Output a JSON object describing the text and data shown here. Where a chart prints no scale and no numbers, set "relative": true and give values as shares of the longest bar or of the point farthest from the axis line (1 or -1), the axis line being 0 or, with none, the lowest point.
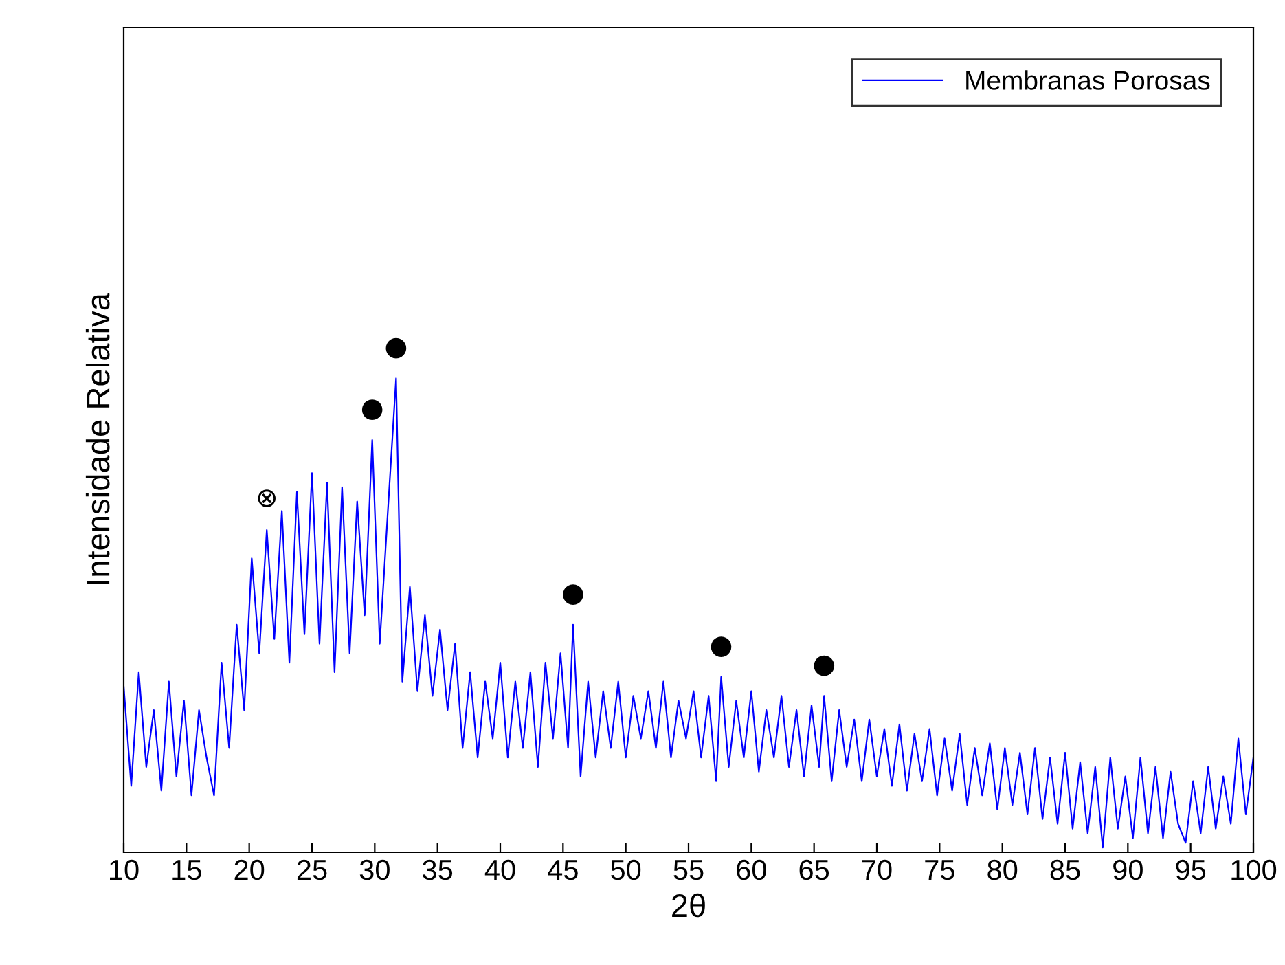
{
  "chart_data": {
    "type": "line",
    "xlabel": "2θ",
    "ylabel": "Intensidade Relativa",
    "relative": true,
    "xlim": [
      10,
      100
    ],
    "xticks": [
      10,
      15,
      20,
      25,
      30,
      35,
      40,
      45,
      50,
      55,
      60,
      65,
      70,
      75,
      80,
      85,
      90,
      95,
      100
    ],
    "tick_labels": "x",
    "legend": "top right",
    "grid": false,
    "series": [
      {
        "name": "Membranas Porosas",
        "color": "#0000ff",
        "x": [
          10.0,
          10.6,
          11.2,
          11.8,
          12.4,
          13.0,
          13.6,
          14.2,
          14.8,
          15.4,
          16.0,
          16.6,
          17.2,
          17.8,
          18.4,
          19.0,
          19.6,
          20.2,
          20.8,
          21.4,
          22.0,
          22.6,
          23.2,
          23.8,
          24.4,
          25.0,
          25.6,
          26.2,
          26.8,
          27.4,
          28.0,
          28.6,
          29.2,
          29.8,
          30.4,
          31.0,
          31.7,
          32.2,
          32.8,
          33.4,
          34.0,
          34.6,
          35.2,
          35.8,
          36.4,
          37.0,
          37.6,
          38.2,
          38.8,
          39.4,
          40.0,
          40.6,
          41.2,
          41.8,
          42.4,
          43.0,
          43.6,
          44.2,
          44.8,
          45.4,
          45.8,
          46.4,
          47.0,
          47.6,
          48.2,
          48.8,
          49.4,
          50.0,
          50.6,
          51.2,
          51.8,
          52.4,
          53.0,
          53.6,
          54.2,
          54.8,
          55.4,
          56.0,
          56.6,
          57.2,
          57.6,
          58.2,
          58.8,
          59.4,
          60.0,
          60.6,
          61.2,
          61.8,
          62.4,
          63.0,
          63.6,
          64.2,
          64.8,
          65.4,
          65.8,
          66.4,
          67.0,
          67.6,
          68.2,
          68.8,
          69.4,
          70.0,
          70.6,
          71.2,
          71.8,
          72.4,
          73.0,
          73.6,
          74.2,
          74.8,
          75.4,
          76.0,
          76.6,
          77.2,
          77.8,
          78.4,
          79.0,
          79.6,
          80.2,
          80.8,
          81.4,
          82.0,
          82.6,
          83.2,
          83.8,
          84.4,
          85.0,
          85.6,
          86.2,
          86.8,
          87.4,
          88.0,
          88.6,
          89.2,
          89.8,
          90.4,
          91.0,
          91.6,
          92.2,
          92.8,
          93.4,
          94.0,
          94.6,
          95.2,
          95.8,
          96.4,
          97.0,
          97.6,
          98.2,
          98.8,
          99.4,
          100.0
        ],
        "values": [
          0.35,
          0.14,
          0.38,
          0.18,
          0.3,
          0.13,
          0.36,
          0.16,
          0.32,
          0.12,
          0.3,
          0.2,
          0.12,
          0.4,
          0.22,
          0.48,
          0.3,
          0.62,
          0.42,
          0.68,
          0.45,
          0.72,
          0.4,
          0.76,
          0.46,
          0.8,
          0.44,
          0.78,
          0.38,
          0.77,
          0.42,
          0.74,
          0.5,
          0.87,
          0.44,
          0.7,
          1.0,
          0.36,
          0.56,
          0.34,
          0.5,
          0.33,
          0.47,
          0.3,
          0.44,
          0.22,
          0.38,
          0.2,
          0.36,
          0.24,
          0.4,
          0.2,
          0.36,
          0.22,
          0.38,
          0.18,
          0.4,
          0.24,
          0.42,
          0.22,
          0.48,
          0.16,
          0.36,
          0.2,
          0.34,
          0.22,
          0.36,
          0.2,
          0.33,
          0.24,
          0.34,
          0.22,
          0.36,
          0.2,
          0.32,
          0.24,
          0.34,
          0.2,
          0.33,
          0.15,
          0.37,
          0.18,
          0.32,
          0.2,
          0.34,
          0.17,
          0.3,
          0.2,
          0.33,
          0.18,
          0.3,
          0.16,
          0.31,
          0.18,
          0.33,
          0.15,
          0.3,
          0.18,
          0.28,
          0.15,
          0.28,
          0.16,
          0.26,
          0.14,
          0.27,
          0.13,
          0.25,
          0.15,
          0.26,
          0.12,
          0.24,
          0.13,
          0.25,
          0.1,
          0.22,
          0.12,
          0.23,
          0.09,
          0.22,
          0.1,
          0.21,
          0.08,
          0.22,
          0.07,
          0.2,
          0.06,
          0.21,
          0.05,
          0.19,
          0.04,
          0.18,
          0.01,
          0.2,
          0.05,
          0.16,
          0.03,
          0.2,
          0.04,
          0.18,
          0.03,
          0.17,
          0.06,
          0.02,
          0.15,
          0.04,
          0.18,
          0.05,
          0.16,
          0.06,
          0.24,
          0.08,
          0.2
        ]
      }
    ],
    "annotations": [
      {
        "text": "⊗",
        "x": 21.4,
        "y": 0.68
      },
      {
        "text": "●",
        "x": 29.8,
        "y": 0.87
      },
      {
        "text": "●",
        "x": 31.7,
        "y": 1.0
      },
      {
        "text": "●",
        "x": 45.8,
        "y": 0.48
      },
      {
        "text": "●",
        "x": 57.6,
        "y": 0.37
      },
      {
        "text": "●",
        "x": 65.8,
        "y": 0.33
      }
    ]
  }
}
